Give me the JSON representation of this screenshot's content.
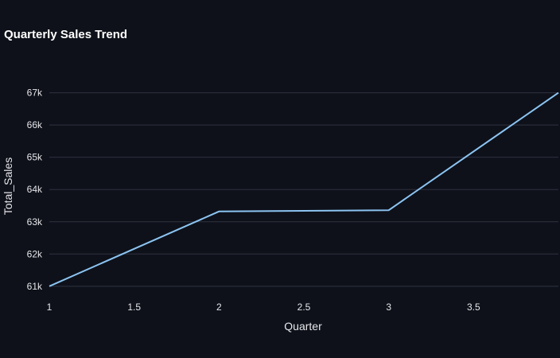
{
  "chart_data": {
    "type": "line",
    "title": "Quarterly Sales Trend",
    "xlabel": "Quarter",
    "ylabel": "Total_Sales",
    "x": [
      1,
      2,
      3,
      4
    ],
    "series": [
      {
        "values": [
          61000,
          63320,
          63360,
          67000
        ]
      }
    ],
    "xlim": [
      1,
      4
    ],
    "ylim": [
      60700,
      68100
    ],
    "x_ticks": [
      1,
      1.5,
      2,
      2.5,
      3,
      3.5
    ],
    "x_tick_labels": [
      "1",
      "1.5",
      "2",
      "2.5",
      "3",
      "3.5"
    ],
    "y_ticks": [
      61000,
      62000,
      63000,
      64000,
      65000,
      66000,
      67000
    ],
    "y_tick_labels": [
      "61k",
      "62k",
      "63k",
      "64k",
      "65k",
      "66k",
      "67k"
    ],
    "grid": "horizontal",
    "colors": {
      "background": "#0e111a",
      "line": "#8cc4f2",
      "grid": "#2f3340"
    }
  }
}
